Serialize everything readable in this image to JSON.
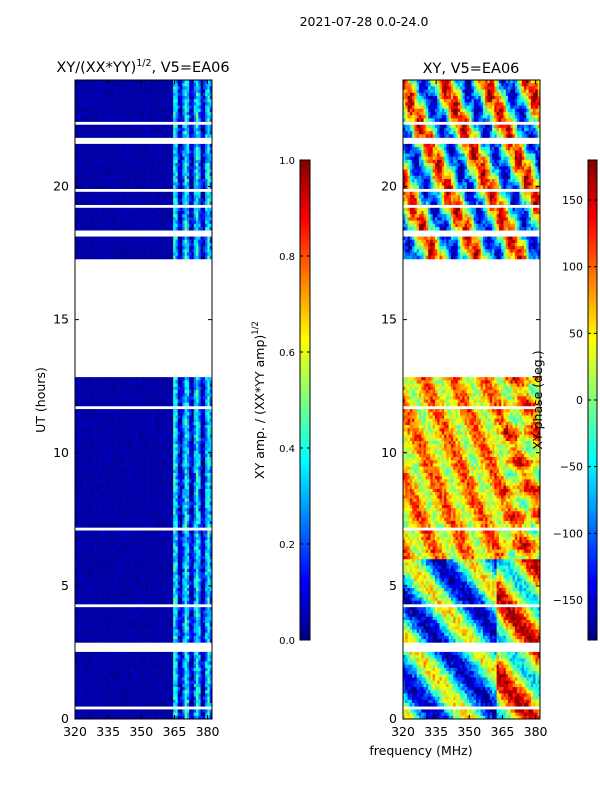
{
  "suptitle": "2021-07-28 0.0-24.0",
  "xlabel_shared": "frequency (MHz)",
  "chart_data": [
    {
      "type": "heatmap",
      "title_base": "XY/(XX*YY)",
      "title_exp": "1/2",
      "title_suffix": ", V5=EA06",
      "ylabel": "UT (hours)",
      "xlim": [
        320,
        382
      ],
      "ylim": [
        0,
        24
      ],
      "xticks": [
        320,
        335,
        350,
        365,
        380
      ],
      "yticks": [
        0,
        5,
        10,
        15,
        20
      ],
      "colormap": "jet",
      "colorbar": {
        "label_base": "XY amp. / (XX*YY amp)",
        "label_exp": "1/2",
        "range": [
          0.0,
          1.0
        ],
        "ticks": [
          0.0,
          0.2,
          0.4,
          0.6,
          0.8,
          1.0
        ],
        "tick_labels": [
          "0.0",
          "0.2",
          "0.4",
          "0.6",
          "0.8",
          "1.0"
        ]
      },
      "data_gap_hours": [
        12.85,
        17.3
      ],
      "active_band_mhz": [
        364,
        382
      ]
    },
    {
      "type": "heatmap",
      "title": "XY, V5=EA06",
      "ylabel": "",
      "xlim": [
        320,
        382
      ],
      "ylim": [
        0,
        24
      ],
      "xticks": [
        320,
        335,
        350,
        365,
        380
      ],
      "yticks": [
        0,
        5,
        10,
        15,
        20
      ],
      "colormap": "jet",
      "colorbar": {
        "label": "XY phase (deg.)",
        "range": [
          -180,
          180
        ],
        "ticks": [
          -150,
          -100,
          -50,
          0,
          50,
          100,
          150
        ],
        "tick_labels": [
          "−150",
          "−100",
          "−50",
          "0",
          "50",
          "100",
          "150"
        ]
      },
      "data_gap_hours": [
        12.85,
        17.3
      ]
    }
  ],
  "colors": {
    "jet": [
      "#00007f",
      "#0000ff",
      "#007fff",
      "#00ffff",
      "#7fff7f",
      "#ffff00",
      "#ff7f00",
      "#ff0000",
      "#7f0000"
    ]
  }
}
